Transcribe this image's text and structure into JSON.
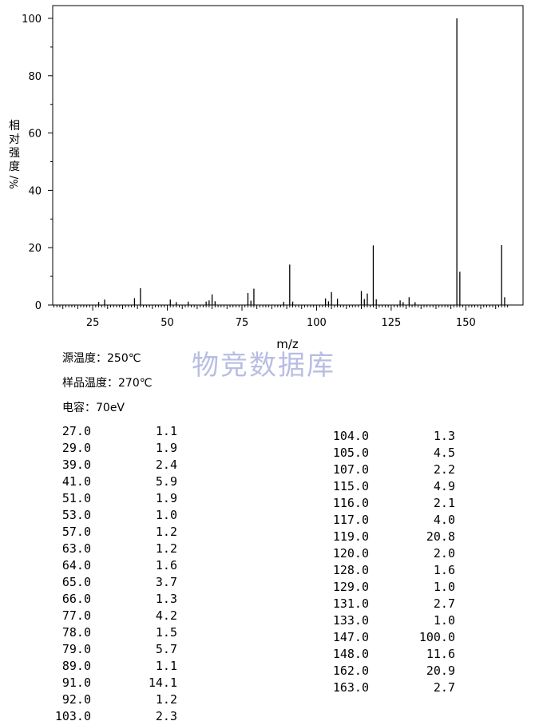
{
  "chart_data": {
    "type": "bar",
    "xlabel": "m/z",
    "ylabel_chars": [
      "相",
      "对",
      "强",
      "度"
    ],
    "ylabel_unit": "%/",
    "xlim": [
      10,
      165
    ],
    "ylim": [
      0,
      100
    ],
    "xticks": [
      25,
      50,
      75,
      100,
      125,
      150
    ],
    "yticks": [
      0,
      20,
      40,
      60,
      80,
      100
    ],
    "grid": false,
    "peaks": [
      {
        "mz": 27.0,
        "abundance": 1.1
      },
      {
        "mz": 29.0,
        "abundance": 1.9
      },
      {
        "mz": 39.0,
        "abundance": 2.4
      },
      {
        "mz": 41.0,
        "abundance": 5.9
      },
      {
        "mz": 51.0,
        "abundance": 1.9
      },
      {
        "mz": 53.0,
        "abundance": 1.0
      },
      {
        "mz": 57.0,
        "abundance": 1.2
      },
      {
        "mz": 63.0,
        "abundance": 1.2
      },
      {
        "mz": 64.0,
        "abundance": 1.6
      },
      {
        "mz": 65.0,
        "abundance": 3.7
      },
      {
        "mz": 66.0,
        "abundance": 1.3
      },
      {
        "mz": 77.0,
        "abundance": 4.2
      },
      {
        "mz": 78.0,
        "abundance": 1.5
      },
      {
        "mz": 79.0,
        "abundance": 5.7
      },
      {
        "mz": 89.0,
        "abundance": 1.1
      },
      {
        "mz": 91.0,
        "abundance": 14.1
      },
      {
        "mz": 92.0,
        "abundance": 1.2
      },
      {
        "mz": 103.0,
        "abundance": 2.3
      },
      {
        "mz": 104.0,
        "abundance": 1.3
      },
      {
        "mz": 105.0,
        "abundance": 4.5
      },
      {
        "mz": 107.0,
        "abundance": 2.2
      },
      {
        "mz": 115.0,
        "abundance": 4.9
      },
      {
        "mz": 116.0,
        "abundance": 2.1
      },
      {
        "mz": 117.0,
        "abundance": 4.0
      },
      {
        "mz": 119.0,
        "abundance": 20.8
      },
      {
        "mz": 120.0,
        "abundance": 2.0
      },
      {
        "mz": 128.0,
        "abundance": 1.6
      },
      {
        "mz": 129.0,
        "abundance": 1.0
      },
      {
        "mz": 131.0,
        "abundance": 2.7
      },
      {
        "mz": 133.0,
        "abundance": 1.0
      },
      {
        "mz": 147.0,
        "abundance": 100.0
      },
      {
        "mz": 148.0,
        "abundance": 11.6
      },
      {
        "mz": 162.0,
        "abundance": 20.9
      },
      {
        "mz": 163.0,
        "abundance": 2.7
      }
    ]
  },
  "watermark": "物竞数据库",
  "meta": {
    "source_temp": "源温度：250℃",
    "sample_temp": "样品温度：270℃",
    "energy": "电容：70eV"
  },
  "table": {
    "col1": [
      [
        "27.0",
        "1.1"
      ],
      [
        "29.0",
        "1.9"
      ],
      [
        "39.0",
        "2.4"
      ],
      [
        "41.0",
        "5.9"
      ],
      [
        "51.0",
        "1.9"
      ],
      [
        "53.0",
        "1.0"
      ],
      [
        "57.0",
        "1.2"
      ],
      [
        "63.0",
        "1.2"
      ],
      [
        "64.0",
        "1.6"
      ],
      [
        "65.0",
        "3.7"
      ],
      [
        "66.0",
        "1.3"
      ],
      [
        "77.0",
        "4.2"
      ],
      [
        "78.0",
        "1.5"
      ],
      [
        "79.0",
        "5.7"
      ],
      [
        "89.0",
        "1.1"
      ],
      [
        "91.0",
        "14.1"
      ],
      [
        "92.0",
        "1.2"
      ],
      [
        "103.0",
        "2.3"
      ]
    ],
    "col2": [
      [
        "104.0",
        "1.3"
      ],
      [
        "105.0",
        "4.5"
      ],
      [
        "107.0",
        "2.2"
      ],
      [
        "115.0",
        "4.9"
      ],
      [
        "116.0",
        "2.1"
      ],
      [
        "117.0",
        "4.0"
      ],
      [
        "119.0",
        "20.8"
      ],
      [
        "120.0",
        "2.0"
      ],
      [
        "128.0",
        "1.6"
      ],
      [
        "129.0",
        "1.0"
      ],
      [
        "131.0",
        "2.7"
      ],
      [
        "133.0",
        "1.0"
      ],
      [
        "147.0",
        "100.0"
      ],
      [
        "148.0",
        "11.6"
      ],
      [
        "162.0",
        "20.9"
      ],
      [
        "163.0",
        "2.7"
      ]
    ]
  }
}
